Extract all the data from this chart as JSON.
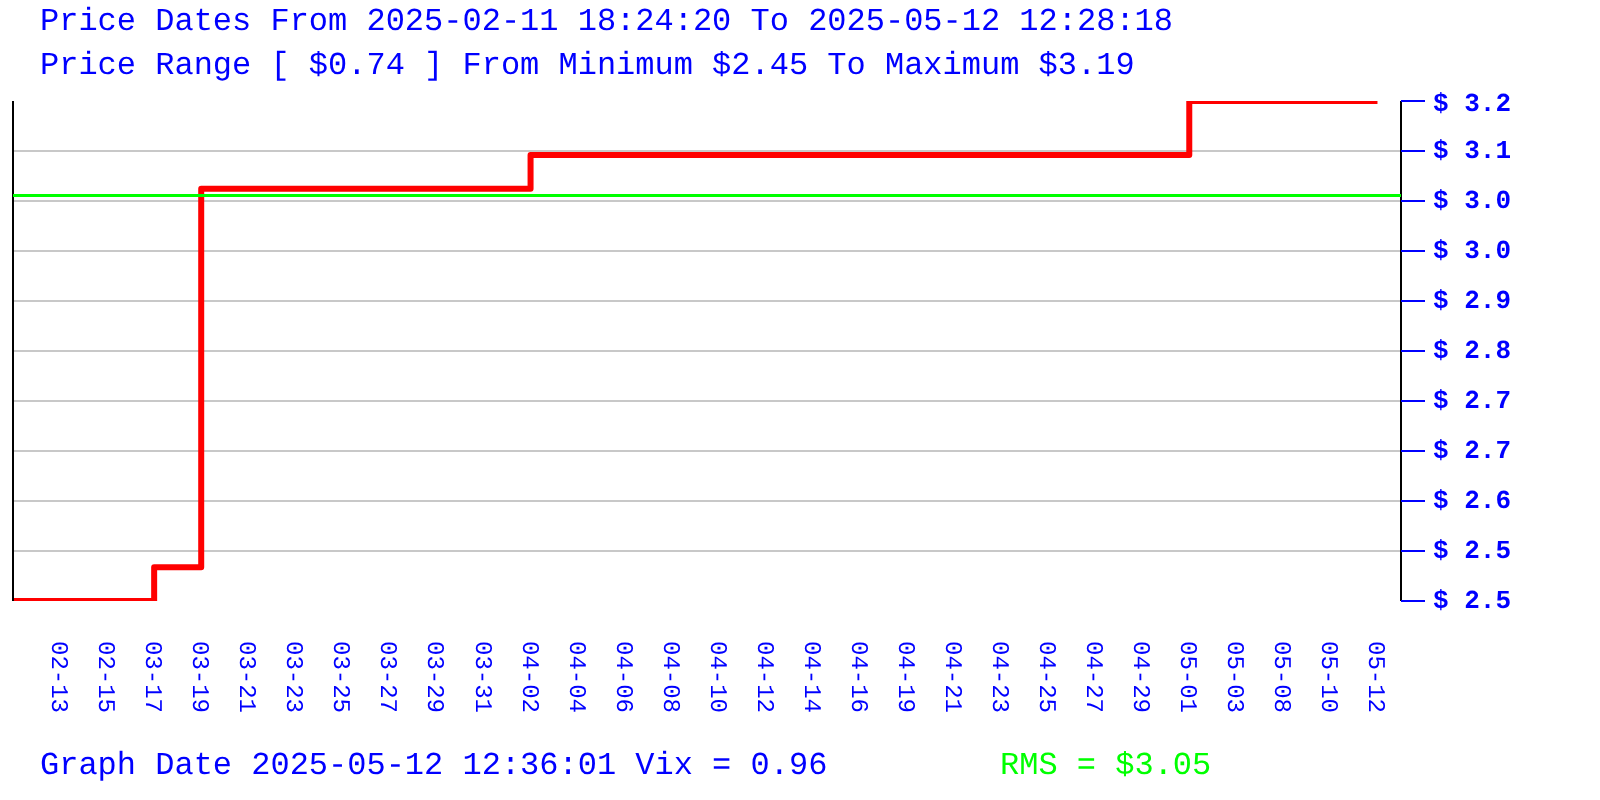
{
  "chart_data": {
    "type": "step",
    "title": "Price Dates From 2025-02-11 18:24:20 To 2025-05-12 12:28:18",
    "subtitle": "Price Range [ $0.74 ] From Minimum $2.45 To Maximum $3.19",
    "annotations": [
      "Graph Date 2025-05-12 12:36:01 Vix = 0.96"
    ],
    "categories": [
      null,
      "02-13",
      "02-15",
      "03-17",
      "03-19",
      "03-21",
      "03-23",
      "03-25",
      "03-27",
      "03-29",
      "03-31",
      "04-02",
      "04-04",
      "04-06",
      "04-08",
      "04-10",
      "04-12",
      "04-14",
      "04-16",
      "04-19",
      "04-21",
      "04-23",
      "04-25",
      "04-27",
      "04-29",
      "05-01",
      "05-03",
      "05-08",
      "05-10",
      "05-12"
    ],
    "series": [
      {
        "color": "#ff0000",
        "values": [
          2.45,
          2.45,
          2.45,
          2.5,
          3.06,
          3.06,
          3.06,
          3.06,
          3.06,
          3.06,
          3.06,
          3.11,
          3.11,
          3.11,
          3.11,
          3.11,
          3.11,
          3.11,
          3.11,
          3.11,
          3.11,
          3.11,
          3.11,
          3.11,
          3.11,
          3.19,
          3.19,
          3.19,
          3.19,
          3.19
        ]
      }
    ],
    "ref_lines": [
      {
        "axis": "y",
        "value": 3.05,
        "label": "RMS = $3.05",
        "color": "#00ff00"
      }
    ],
    "ylim": [
      2.45,
      3.19
    ],
    "yticks": [
      {
        "value": 2.45,
        "label": "$ 2.5"
      },
      {
        "value": 2.524,
        "label": "$ 2.5"
      },
      {
        "value": 2.598,
        "label": "$ 2.6"
      },
      {
        "value": 2.672,
        "label": "$ 2.7"
      },
      {
        "value": 2.746,
        "label": "$ 2.7"
      },
      {
        "value": 2.82,
        "label": "$ 2.8"
      },
      {
        "value": 2.894,
        "label": "$ 2.9"
      },
      {
        "value": 2.968,
        "label": "$ 3.0"
      },
      {
        "value": 3.042,
        "label": "$ 3.0"
      },
      {
        "value": 3.116,
        "label": "$ 3.1"
      },
      {
        "value": 3.19,
        "label": "$ 3.2"
      }
    ],
    "grid": "y"
  }
}
